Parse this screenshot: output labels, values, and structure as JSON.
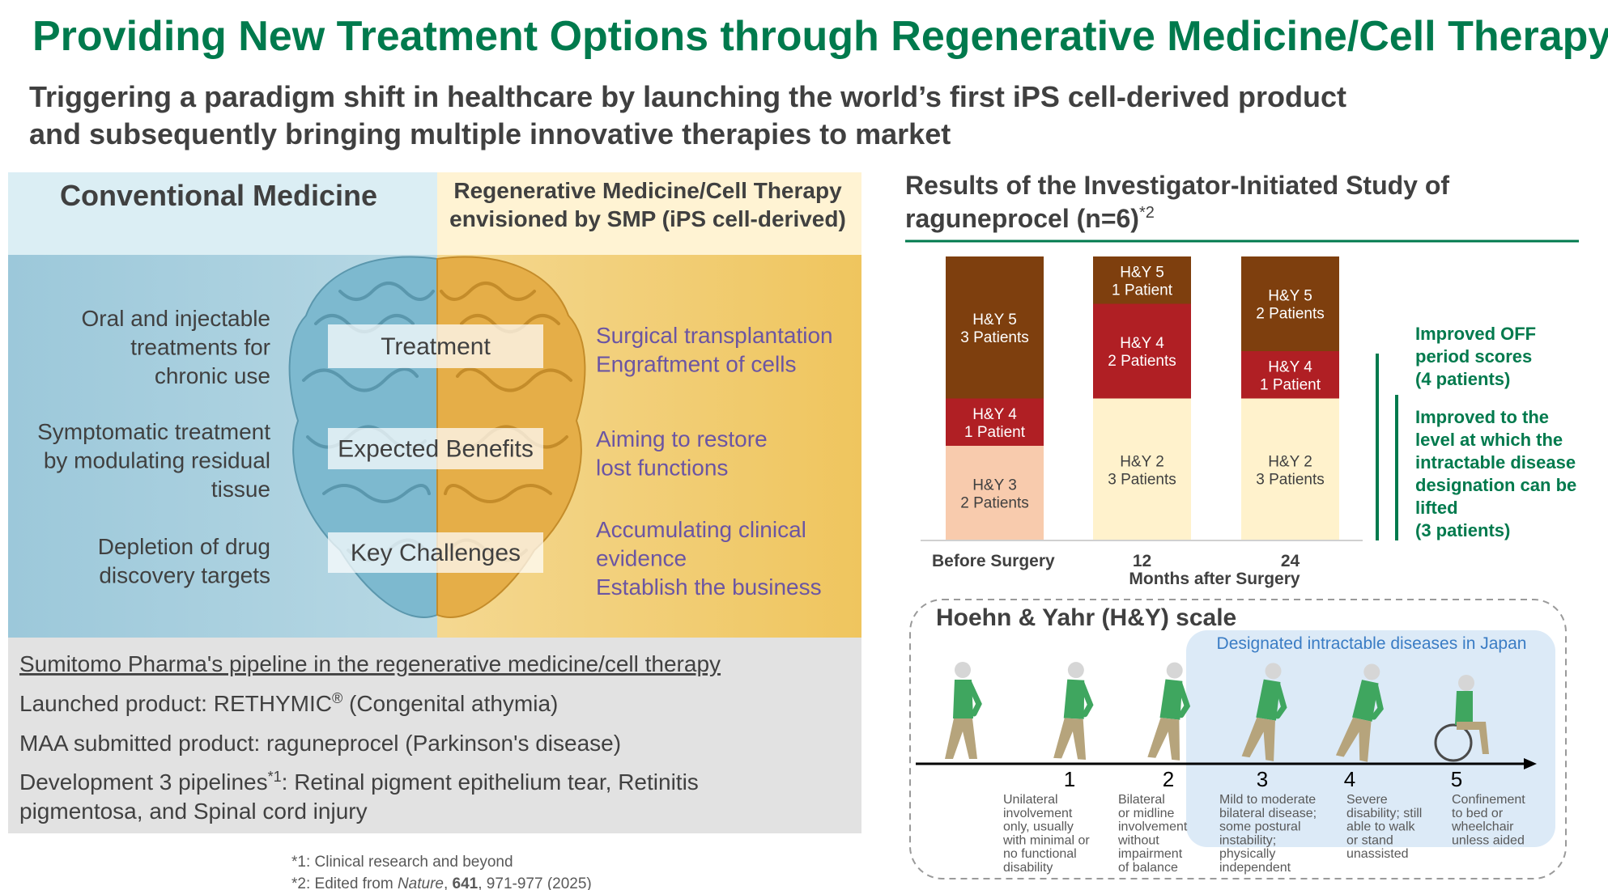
{
  "header": {
    "title": "Providing New Treatment Options through Regenerative Medicine/Cell Therapy",
    "subtitle": [
      "Triggering a paradigm shift in healthcare by launching the world’s first iPS cell-derived product",
      "and subsequently bringing multiple innovative therapies to market"
    ]
  },
  "comparison": {
    "left_heading": "Conventional Medicine",
    "right_heading": [
      "Regenerative Medicine/Cell Therapy",
      "envisioned by SMP (iPS cell-derived)"
    ],
    "rows": [
      {
        "label": "Treatment",
        "conventional": [
          "Oral and injectable",
          "treatments for",
          "chronic  use"
        ],
        "regenerative": [
          "Surgical transplantation",
          "Engraftment of cells"
        ]
      },
      {
        "label": "Expected Benefits",
        "conventional": [
          "Symptomatic treatment",
          "by modulating residual",
          "tissue"
        ],
        "regenerative": [
          "Aiming to restore",
          "lost functions"
        ]
      },
      {
        "label": "Key Challenges",
        "conventional": [
          "Depletion of drug",
          "discovery targets"
        ],
        "regenerative": [
          "Accumulating clinical",
          "evidence",
          "Establish the business"
        ]
      }
    ]
  },
  "pipeline": {
    "heading": "Sumitomo Pharma's pipeline in the regenerative medicine/cell therapy",
    "items": [
      {
        "before": "Launched product: RETHYMIC",
        "sup": "®",
        "after": " (Congenital athymia)"
      },
      {
        "before": "MAA submitted product: raguneprocel (Parkinson's disease)"
      },
      {
        "before": "Development 3 pipelines",
        "sup": "*1",
        "after": ": Retinal pigment epithelium tear, Retinitis"
      },
      {
        "before": "pigmentosa, and Spinal cord injury"
      }
    ]
  },
  "chart_data": {
    "type": "stacked-bar",
    "title": [
      "Results of the Investigator-Initiated  Study of",
      "raguneprocel  (n=6)"
    ],
    "title_sup": "*2",
    "categories": [
      "Before Surgery",
      "12",
      "24"
    ],
    "x_label": "Months after Surgery",
    "ylim": [
      0,
      6
    ],
    "series": [
      {
        "name": "H&Y 5",
        "color": "#7e3f0e",
        "values": [
          3,
          1,
          2
        ],
        "value_labels": [
          "3 Patients",
          "1 Patient",
          "2 Patients"
        ]
      },
      {
        "name": "H&Y 4",
        "color": "#b01f24",
        "values": [
          1,
          2,
          1
        ],
        "value_labels": [
          "1 Patient",
          "2 Patients",
          "1 Patient"
        ]
      },
      {
        "name": "H&Y 3",
        "color": "#f8cbad",
        "values": [
          2,
          null,
          null
        ],
        "value_labels": [
          "2 Patients",
          null,
          null
        ]
      },
      {
        "name": "H&Y 2",
        "color": "#fff2cc",
        "values": [
          null,
          3,
          3
        ],
        "value_labels": [
          null,
          "3 Patients",
          "3 Patients"
        ]
      }
    ],
    "annotations": [
      [
        "Improved OFF",
        "period scores",
        "(4 patients)"
      ],
      [
        "Improved to the",
        "level at which the",
        "intractable disease",
        "designation can be",
        "lifted",
        "(3 patients)"
      ]
    ]
  },
  "hy_scale": {
    "title": "Hoehn & Yahr (H&Y) scale",
    "region_label": "Designated intractable diseases in Japan",
    "stages": [
      {
        "number": 1,
        "description": [
          "Unilateral",
          "involvement",
          "only, usually",
          "with minimal or",
          "no functional",
          "disability"
        ]
      },
      {
        "number": 2,
        "description": [
          "Bilateral",
          "or midline",
          "involvement",
          "without",
          "impairment",
          "of balance"
        ]
      },
      {
        "number": 3,
        "description": [
          "Mild to moderate",
          "bilateral disease;",
          "some postural",
          "instability;",
          "physically",
          "independent"
        ]
      },
      {
        "number": 4,
        "description": [
          "Severe",
          "disability; still",
          "able to walk",
          "or stand",
          "unassisted"
        ]
      },
      {
        "number": 5,
        "description": [
          "Confinement",
          "to bed or",
          "wheelchair",
          "unless aided"
        ]
      }
    ]
  },
  "footnotes": {
    "first": "*1: Clinical research and beyond",
    "second": {
      "prefix": "*2: Edited from ",
      "journal": "Nature",
      "sep": ", ",
      "volume": "641",
      "pages": ", 971-977 (2025)"
    }
  }
}
